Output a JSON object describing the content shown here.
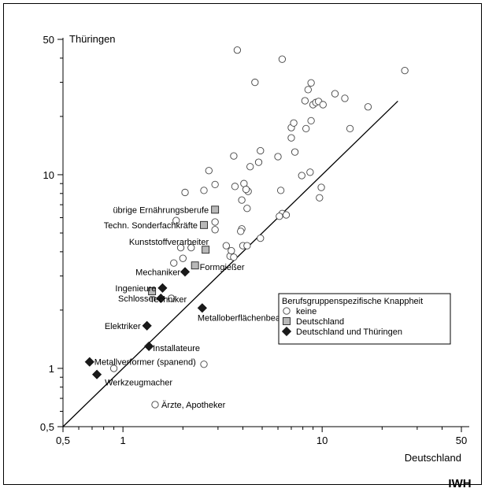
{
  "chart_data": {
    "type": "scatter",
    "scale": "log-log",
    "xlim": [
      0.5,
      50
    ],
    "ylim": [
      0.5,
      50
    ],
    "xticks": [
      "0,5",
      "1",
      "10",
      "50"
    ],
    "yticks": [
      "0,5",
      "1",
      "10",
      "50"
    ],
    "xlabel": "Deutschland",
    "ylabel": "Thüringen",
    "diagonal": {
      "from": [
        0.5,
        0.5
      ],
      "to": [
        24,
        24
      ]
    },
    "legend": {
      "title": "Berufsgruppenspezifische Knappheit",
      "position": "right",
      "entries": [
        {
          "label": "keine",
          "marker": "circle"
        },
        {
          "label": "Deutschland",
          "marker": "square"
        },
        {
          "label": "Deutschland und Thüringen",
          "marker": "diamond"
        }
      ]
    },
    "series": [
      {
        "name": "keine",
        "marker": "circle",
        "points": [
          [
            1.45,
            0.65
          ],
          [
            2.55,
            1.05
          ],
          [
            0.9,
            1.0
          ],
          [
            1.75,
            2.3
          ],
          [
            1.8,
            3.5
          ],
          [
            2.0,
            3.7
          ],
          [
            1.95,
            4.2
          ],
          [
            2.2,
            4.2
          ],
          [
            1.85,
            5.8
          ],
          [
            2.9,
            5.2
          ],
          [
            2.9,
            5.7
          ],
          [
            3.3,
            4.3
          ],
          [
            3.45,
            3.8
          ],
          [
            3.6,
            3.75
          ],
          [
            3.5,
            4.05
          ],
          [
            4.0,
            4.3
          ],
          [
            4.2,
            4.3
          ],
          [
            4.9,
            4.7
          ],
          [
            3.95,
            5.25
          ],
          [
            3.9,
            5.1
          ],
          [
            4.2,
            6.7
          ],
          [
            3.95,
            7.4
          ],
          [
            4.25,
            8.2
          ],
          [
            4.05,
            9.0
          ],
          [
            4.15,
            8.4
          ],
          [
            3.65,
            8.7
          ],
          [
            2.9,
            8.9
          ],
          [
            2.55,
            8.3
          ],
          [
            2.05,
            8.1
          ],
          [
            2.7,
            10.5
          ],
          [
            4.35,
            11.0
          ],
          [
            4.8,
            11.6
          ],
          [
            4.9,
            13.3
          ],
          [
            3.6,
            12.5
          ],
          [
            6.0,
            12.4
          ],
          [
            6.2,
            8.3
          ],
          [
            6.3,
            6.3
          ],
          [
            6.6,
            6.2
          ],
          [
            6.1,
            6.1
          ],
          [
            7.3,
            13.1
          ],
          [
            7.0,
            15.5
          ],
          [
            7.0,
            17.5
          ],
          [
            7.2,
            18.5
          ],
          [
            7.9,
            9.9
          ],
          [
            8.7,
            10.3
          ],
          [
            9.9,
            8.6
          ],
          [
            9.7,
            7.6
          ],
          [
            8.3,
            17.3
          ],
          [
            8.8,
            19.0
          ],
          [
            9.0,
            23.0
          ],
          [
            9.3,
            23.6
          ],
          [
            9.6,
            23.9
          ],
          [
            10.1,
            23.0
          ],
          [
            8.2,
            24.1
          ],
          [
            8.5,
            27.5
          ],
          [
            8.8,
            29.8
          ],
          [
            11.6,
            26.2
          ],
          [
            13.0,
            24.8
          ],
          [
            13.8,
            17.3
          ],
          [
            17.0,
            22.4
          ],
          [
            26.0,
            34.5
          ],
          [
            6.3,
            39.5
          ],
          [
            4.6,
            30.0
          ],
          [
            3.75,
            44.0
          ]
        ]
      },
      {
        "name": "Deutschland",
        "marker": "square",
        "points": [
          [
            1.4,
            2.5
          ],
          [
            2.3,
            3.4
          ],
          [
            2.6,
            4.1
          ],
          [
            2.55,
            5.5
          ],
          [
            2.9,
            6.6
          ]
        ]
      },
      {
        "name": "Deutschland und Thüringen",
        "marker": "diamond",
        "points": [
          [
            0.68,
            1.08
          ],
          [
            0.74,
            0.93
          ],
          [
            1.35,
            1.3
          ],
          [
            1.32,
            1.66
          ],
          [
            1.55,
            2.3
          ],
          [
            1.58,
            2.6
          ],
          [
            2.05,
            3.15
          ],
          [
            2.5,
            2.05
          ]
        ]
      }
    ],
    "annotations": [
      {
        "text": "übrige Ernährungsberufe",
        "x": 2.9,
        "y": 6.6
      },
      {
        "text": "Techn. Sonderfachkräfte",
        "x": 2.55,
        "y": 5.5
      },
      {
        "text": "Kunststoffverarbeiter",
        "x": 2.6,
        "y": 4.1
      },
      {
        "text": "Formgießer",
        "x": 2.3,
        "y": 3.4
      },
      {
        "text": "Mechaniker",
        "x": 2.05,
        "y": 3.15
      },
      {
        "text": "Ingenieure",
        "x": 1.58,
        "y": 2.6
      },
      {
        "text": "Schlosser",
        "x": 1.55,
        "y": 2.3
      },
      {
        "text": "Techniker",
        "x": 1.4,
        "y": 2.5
      },
      {
        "text": "Metalloberflächenbearbeiter",
        "x": 2.5,
        "y": 2.05
      },
      {
        "text": "Elektriker",
        "x": 1.32,
        "y": 1.66
      },
      {
        "text": "Installateure",
        "x": 1.35,
        "y": 1.3
      },
      {
        "text": "Metallverformer (spanend)",
        "x": 0.68,
        "y": 1.08
      },
      {
        "text": "Werkzeugmacher",
        "x": 0.74,
        "y": 0.93
      },
      {
        "text": "Ärzte, Apotheker",
        "x": 1.45,
        "y": 0.65
      }
    ],
    "source_label": "IWH"
  }
}
